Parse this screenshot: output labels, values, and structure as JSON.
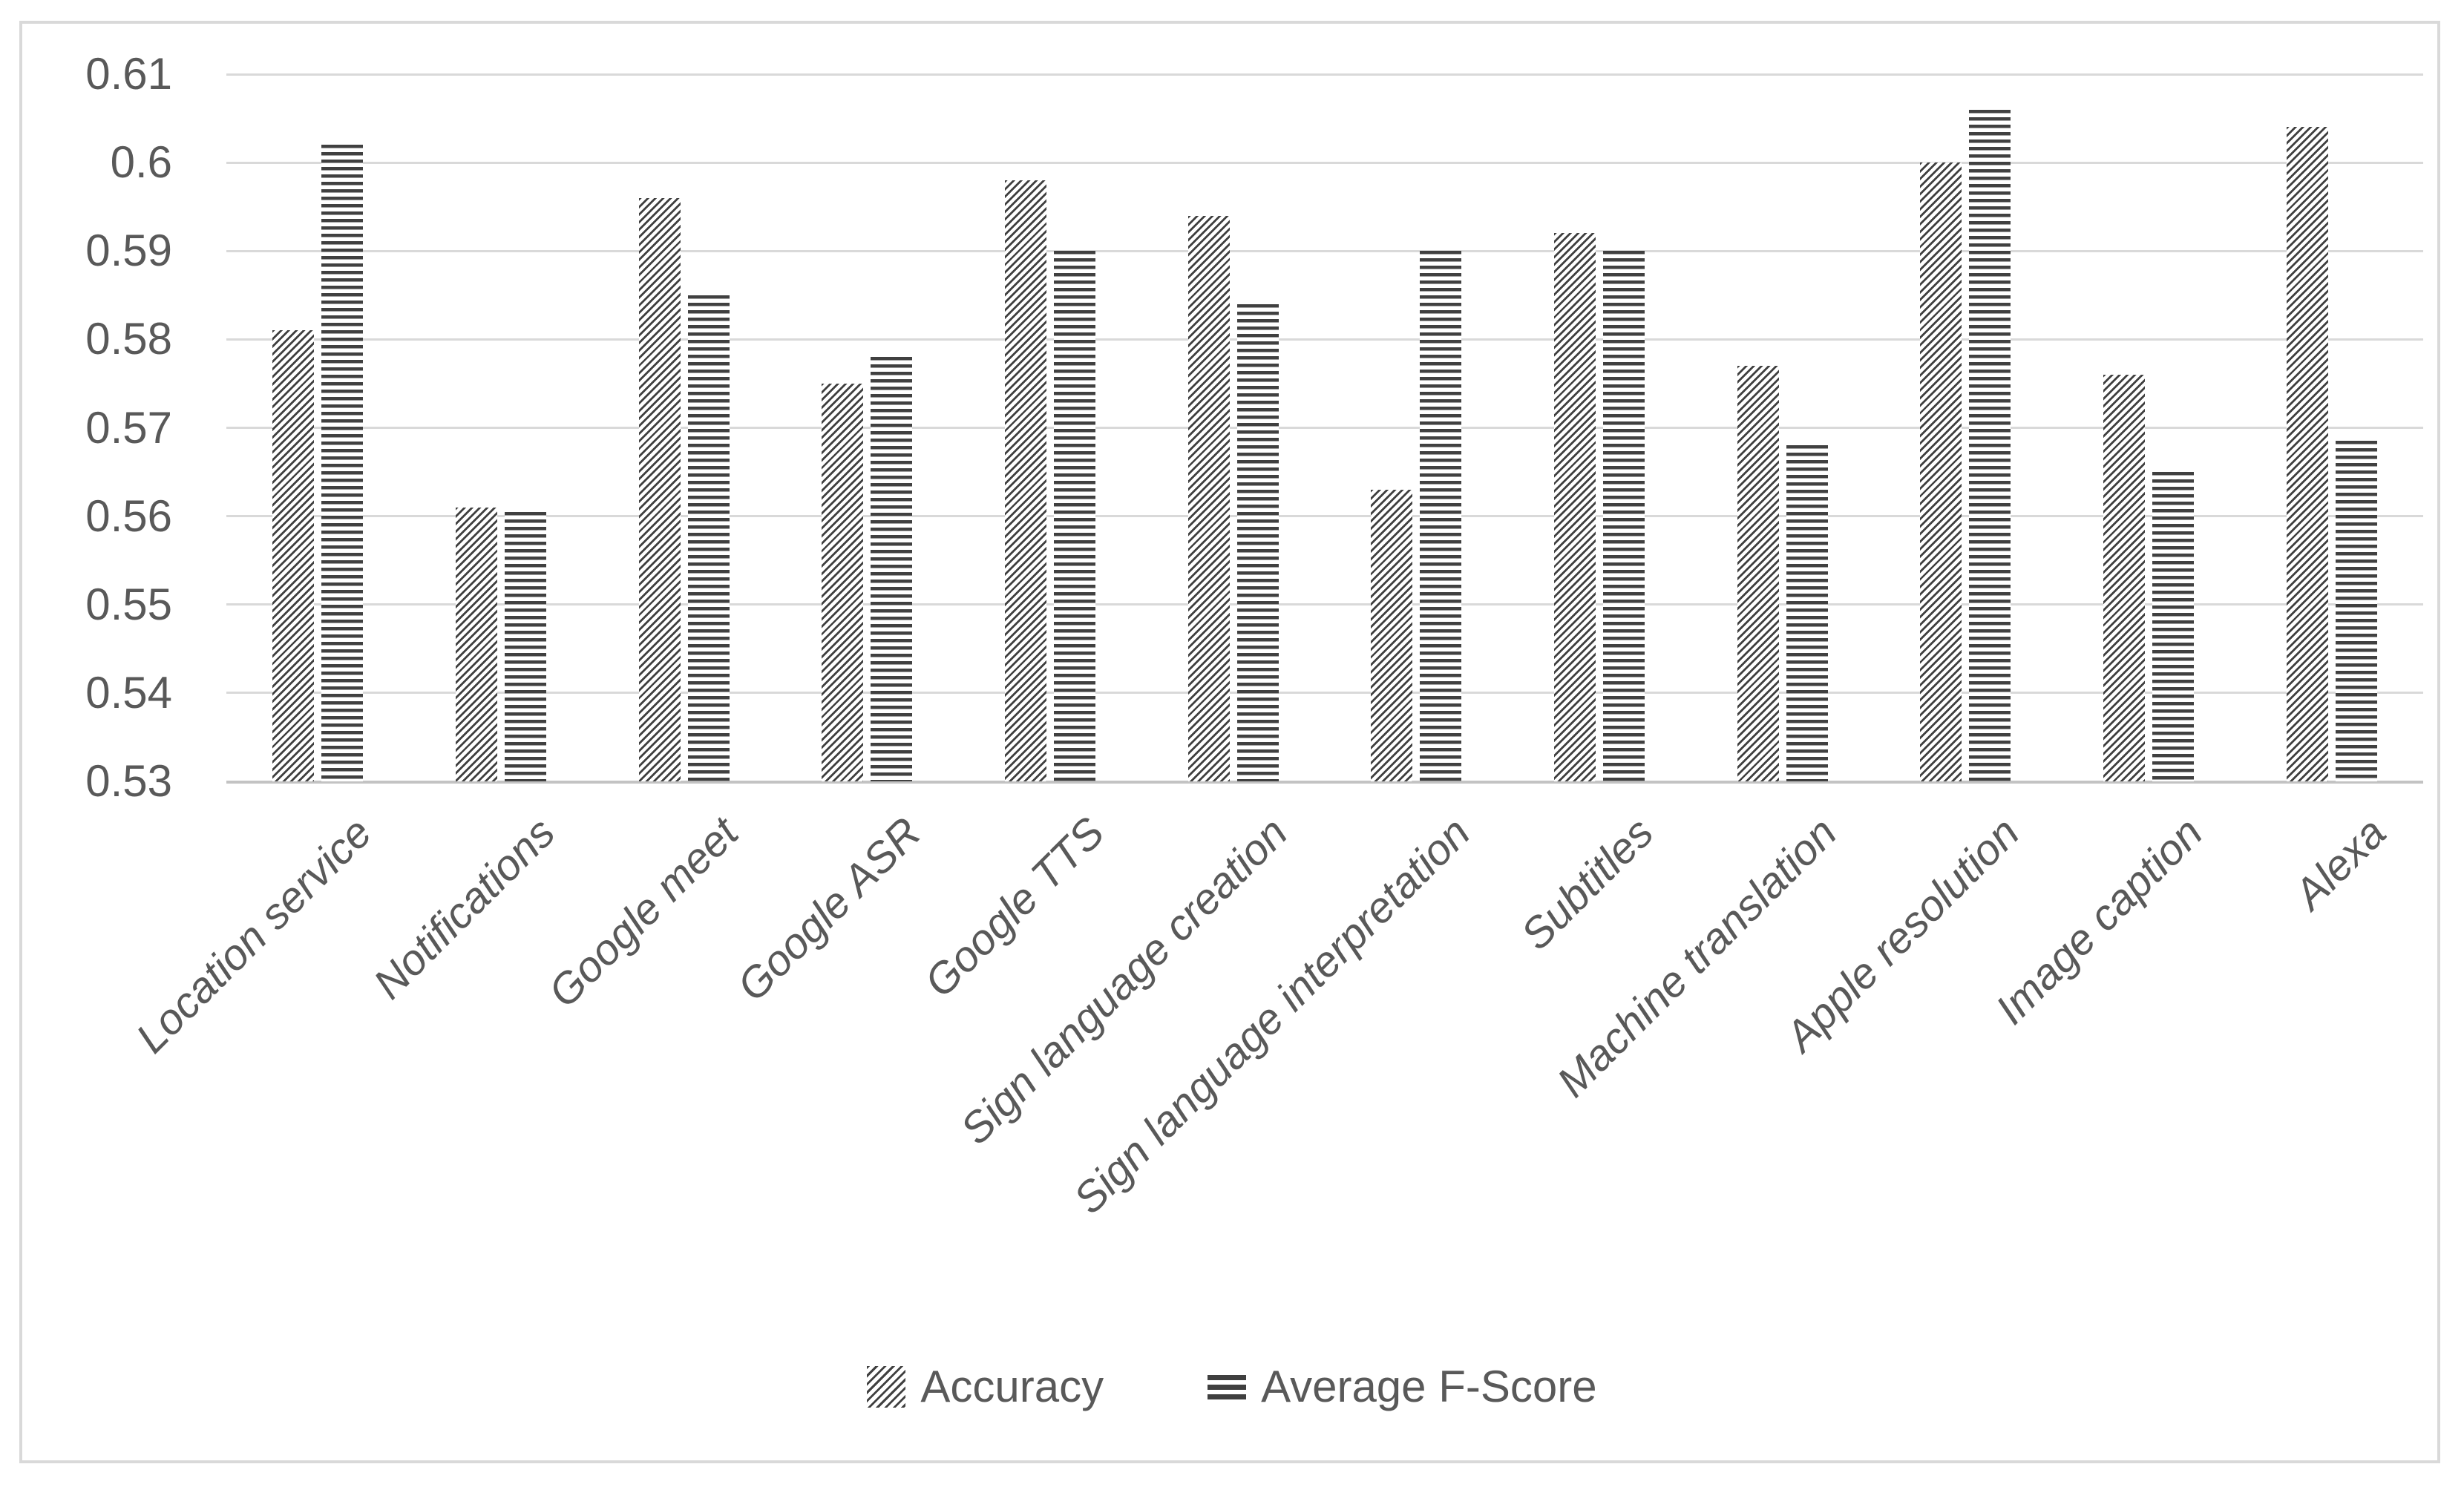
{
  "chart_data": {
    "type": "bar",
    "title": "",
    "xlabel": "",
    "ylabel": "",
    "categories": [
      "Location service",
      "Notifications",
      "Google meet",
      "Google ASR",
      "Google TTS",
      "Sign language creation",
      "Sign language interpretation",
      "Subtitles",
      "Machine translation",
      "Apple resolution",
      "Image caption",
      "Alexa"
    ],
    "series": [
      {
        "name": "Accuracy",
        "pattern": "diagonal-hatch",
        "values": [
          0.581,
          0.561,
          0.596,
          0.575,
          0.598,
          0.594,
          0.563,
          0.592,
          0.577,
          0.6,
          0.576,
          0.604
        ]
      },
      {
        "name": "Average F-Score",
        "pattern": "horizontal-lines",
        "values": [
          0.602,
          0.5605,
          0.585,
          0.578,
          0.59,
          0.584,
          0.59,
          0.59,
          0.568,
          0.606,
          0.565,
          0.5685
        ]
      }
    ],
    "ylim": [
      0.53,
      0.61
    ],
    "ytick_step": 0.01,
    "yticks": [
      "0.61",
      "0.6",
      "0.59",
      "0.58",
      "0.57",
      "0.56",
      "0.55",
      "0.54",
      "0.53"
    ],
    "grid": true,
    "legend_position": "bottom-center",
    "colors": {
      "pattern_ink": "#404040",
      "background": "#ffffff",
      "gridline": "#d9d9d9",
      "axis_line": "#c3c3c3",
      "text": "#595959",
      "frame_border": "#d9d9d9"
    }
  }
}
